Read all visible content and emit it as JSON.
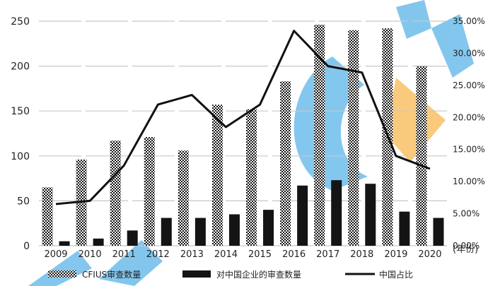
{
  "chart_data": {
    "type": "bar",
    "categories": [
      "2009",
      "2010",
      "2011",
      "2012",
      "2013",
      "2014",
      "2015",
      "2016",
      "2017",
      "2018",
      "2019",
      "2020"
    ],
    "series": [
      {
        "name": "CFIUS审查数量",
        "kind": "bar",
        "axis": "left",
        "pattern": "dotted",
        "values": [
          65,
          96,
          117,
          121,
          106,
          157,
          152,
          183,
          246,
          240,
          242,
          200
        ]
      },
      {
        "name": "对中国企业的审查数量",
        "kind": "bar",
        "axis": "left",
        "pattern": "solid",
        "values": [
          5,
          8,
          17,
          31,
          31,
          35,
          40,
          67,
          73,
          69,
          38,
          31
        ]
      },
      {
        "name": "中国占比",
        "kind": "line",
        "axis": "right",
        "values": [
          6.5,
          7.0,
          12.5,
          22.0,
          23.5,
          18.5,
          22.0,
          33.5,
          28.0,
          27.0,
          14.0,
          12.0
        ]
      }
    ],
    "left_ticks": [
      "0",
      "50",
      "100",
      "150",
      "200",
      "250"
    ],
    "right_ticks": [
      "0.00%",
      "5.00%",
      "10.00%",
      "15.00%",
      "20.00%",
      "25.00%",
      "30.00%",
      "35.00%"
    ],
    "ylim_left": [
      0,
      250
    ],
    "ylim_right": [
      0,
      35
    ],
    "x_unit_label": "(年份)",
    "grid": true,
    "legend_position": "bottom",
    "colors": {
      "bar_fill": "#141414",
      "line": "#111111",
      "grid": "#c8c8c8",
      "watermark_blue": "#59b4e8",
      "watermark_orange": "#f5a623"
    }
  }
}
